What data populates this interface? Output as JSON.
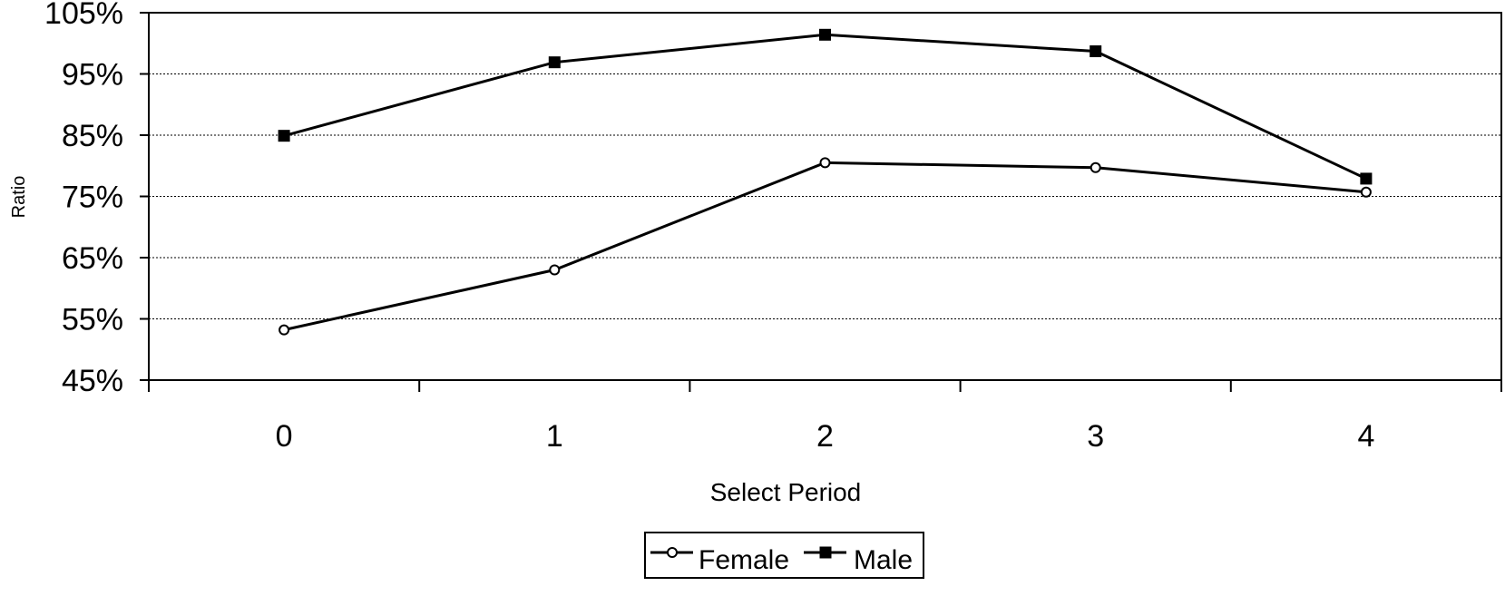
{
  "chart_data": {
    "type": "line",
    "xlabel": "Select Period",
    "ylabel": "Ratio",
    "categories": [
      "0",
      "1",
      "2",
      "3",
      "4"
    ],
    "y_ticks": [
      "45%",
      "55%",
      "65%",
      "75%",
      "85%",
      "95%",
      "105%"
    ],
    "ylim": [
      45,
      105
    ],
    "grid": true,
    "legend": "bottom",
    "series": [
      {
        "name": "Female",
        "marker": "circle-open",
        "values": [
          53.2,
          63.0,
          80.5,
          79.7,
          75.7
        ]
      },
      {
        "name": "Male",
        "marker": "square-filled",
        "values": [
          84.9,
          96.9,
          101.4,
          98.7,
          77.9
        ]
      }
    ]
  }
}
